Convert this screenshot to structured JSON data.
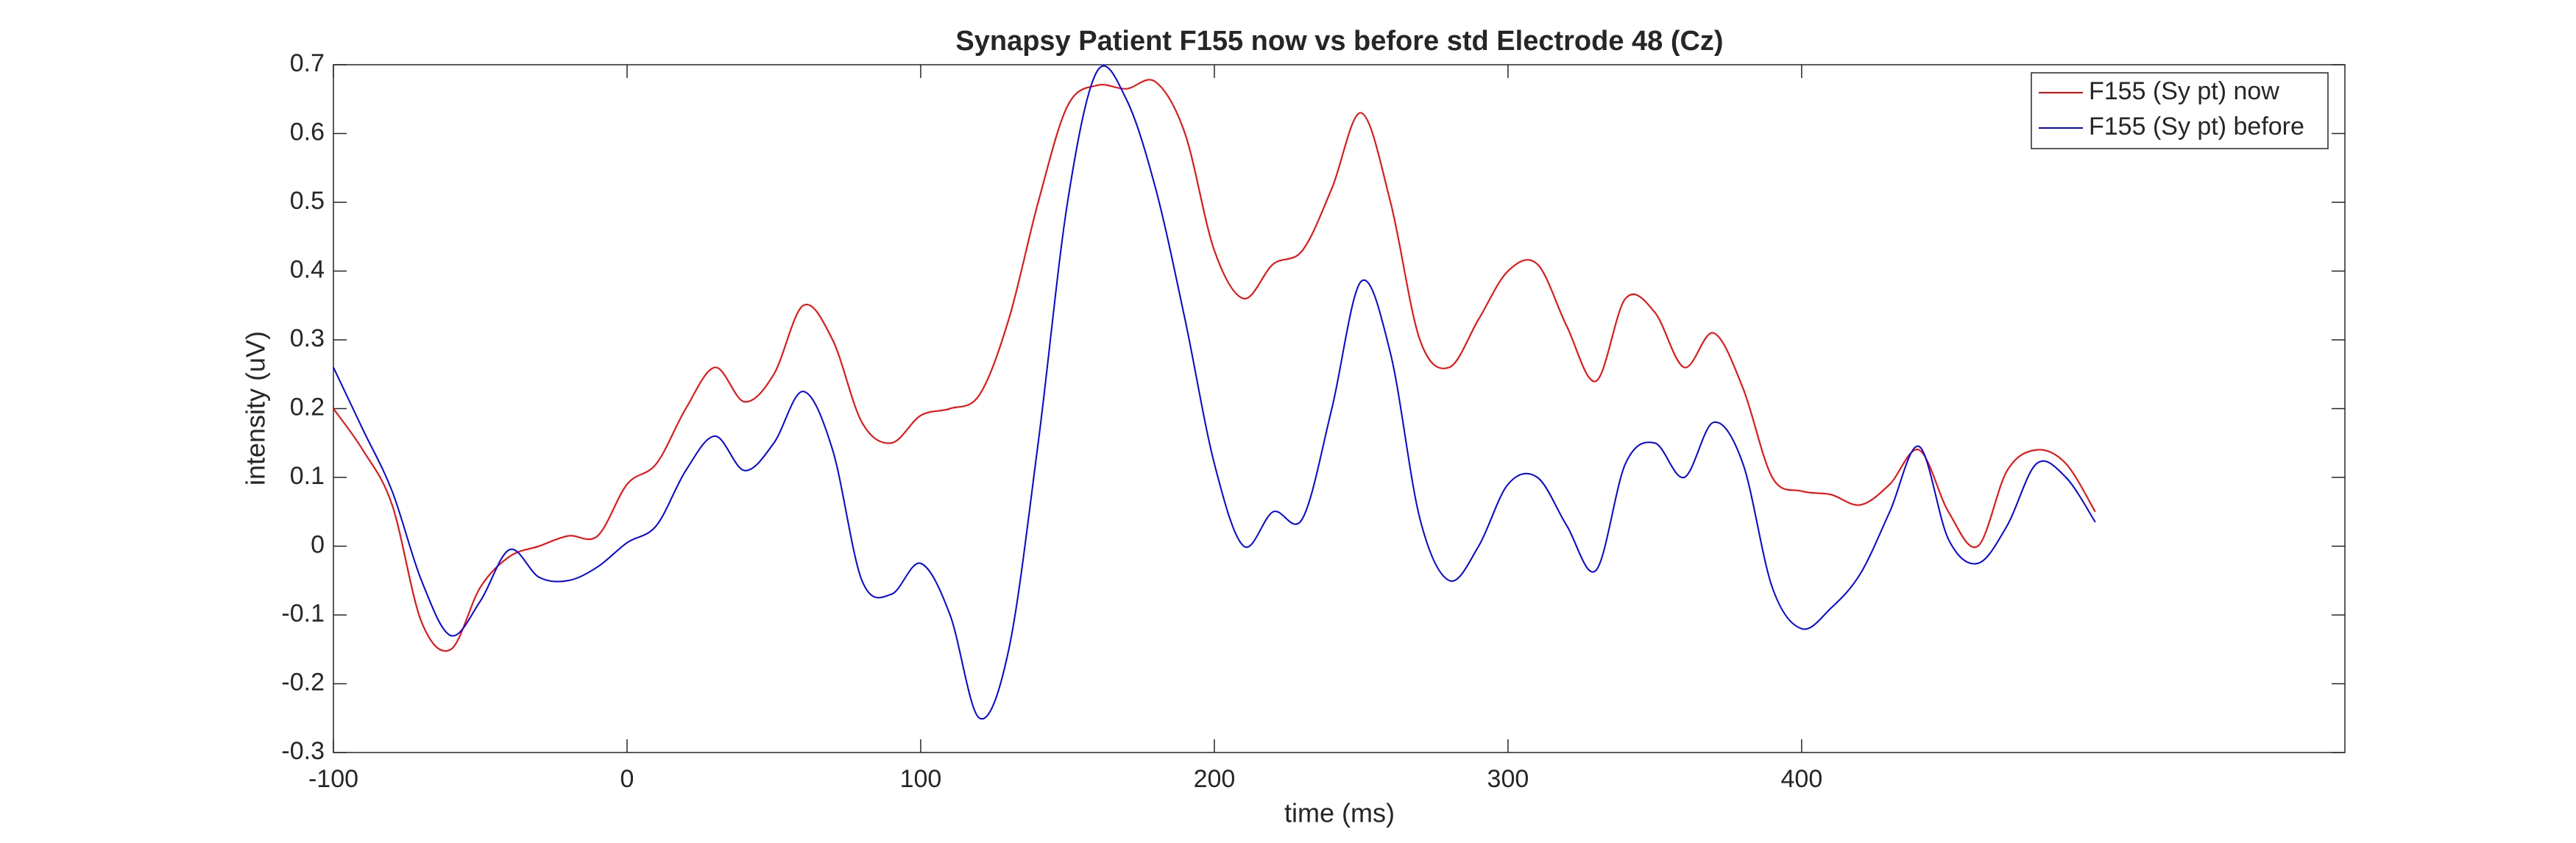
{
  "chart_data": {
    "type": "line",
    "title": "Synapsy Patient F155 now vs before std Electrode 48 (Cz)",
    "x_label": "time (ms)",
    "y_label": "intensity (uV)",
    "x": [
      -100,
      -90,
      -80,
      -70,
      -60,
      -50,
      -40,
      -30,
      -20,
      -10,
      0,
      10,
      20,
      30,
      40,
      50,
      60,
      70,
      80,
      90,
      100,
      110,
      120,
      130,
      140,
      150,
      160,
      170,
      180,
      190,
      200,
      210,
      220,
      230,
      240,
      250,
      260,
      270,
      280,
      290,
      300,
      310,
      320,
      330,
      340,
      350,
      360,
      370,
      380,
      390,
      400,
      410,
      420,
      430,
      440,
      450,
      460,
      470,
      480,
      490,
      500
    ],
    "series": [
      {
        "name": "F155 (Sy pt) now",
        "color": "#ff0000",
        "values": [
          0.2,
          0.14,
          0.06,
          -0.11,
          -0.15,
          -0.06,
          -0.015,
          0.0,
          0.015,
          0.015,
          0.09,
          0.12,
          0.2,
          0.26,
          0.21,
          0.25,
          0.35,
          0.3,
          0.18,
          0.15,
          0.19,
          0.2,
          0.22,
          0.33,
          0.5,
          0.64,
          0.67,
          0.665,
          0.675,
          0.6,
          0.43,
          0.36,
          0.41,
          0.43,
          0.52,
          0.63,
          0.5,
          0.3,
          0.26,
          0.33,
          0.4,
          0.41,
          0.32,
          0.24,
          0.36,
          0.34,
          0.26,
          0.31,
          0.23,
          0.1,
          0.08,
          0.075,
          0.06,
          0.09,
          0.14,
          0.05,
          0.0,
          0.11,
          0.14,
          0.12,
          0.05
        ]
      },
      {
        "name": "F155 (Sy pt) before",
        "color": "#0000ff",
        "values": [
          0.26,
          0.17,
          0.08,
          -0.05,
          -0.13,
          -0.08,
          -0.005,
          -0.045,
          -0.05,
          -0.03,
          0.005,
          0.03,
          0.11,
          0.16,
          0.11,
          0.15,
          0.225,
          0.14,
          -0.05,
          -0.07,
          -0.025,
          -0.1,
          -0.25,
          -0.15,
          0.15,
          0.5,
          0.69,
          0.65,
          0.52,
          0.33,
          0.12,
          0.0,
          0.05,
          0.04,
          0.2,
          0.385,
          0.28,
          0.04,
          -0.05,
          0.0,
          0.09,
          0.1,
          0.03,
          -0.035,
          0.12,
          0.15,
          0.1,
          0.18,
          0.12,
          -0.06,
          -0.12,
          -0.09,
          -0.04,
          0.05,
          0.145,
          0.01,
          -0.025,
          0.03,
          0.12,
          0.1,
          0.035
        ]
      }
    ],
    "xlim": [
      -100,
      585
    ],
    "xticks": [
      -100,
      0,
      100,
      200,
      300,
      400
    ],
    "ylim": [
      -0.3,
      0.7
    ],
    "yticks": [
      -0.3,
      -0.2,
      -0.1,
      0,
      0.1,
      0.2,
      0.3,
      0.4,
      0.5,
      0.6,
      0.7
    ],
    "grid": false,
    "legend": "upper right"
  }
}
